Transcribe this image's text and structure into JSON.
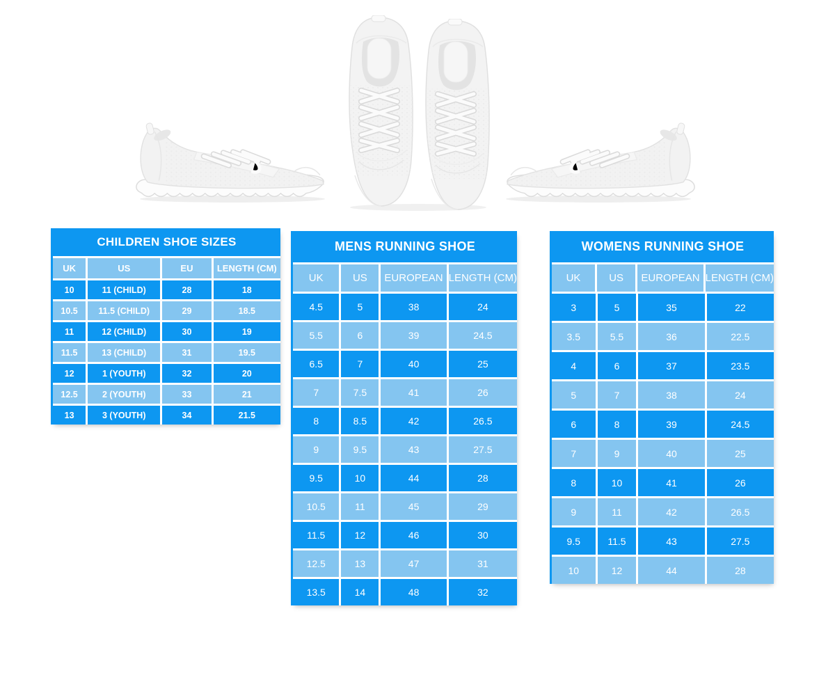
{
  "page": {
    "background": "#ffffff"
  },
  "colors": {
    "table_dark_blue": "#0d97f1",
    "table_light_blue": "#84c5f0",
    "cell_text": "#ffffff"
  },
  "hero_images": {
    "left": "white-sneaker-side-view",
    "center": "white-sneakers-pair-top-view",
    "right": "white-sneaker-side-view-mirrored"
  },
  "chart_data": [
    {
      "type": "table",
      "title": "CHILDREN SHOE SIZES",
      "columns": [
        "UK",
        "US",
        "EU",
        "LENGTH (CM)"
      ],
      "rows": [
        [
          "10",
          "11 (CHILD)",
          "28",
          "18"
        ],
        [
          "10.5",
          "11.5 (CHILD)",
          "29",
          "18.5"
        ],
        [
          "11",
          "12 (CHILD)",
          "30",
          "19"
        ],
        [
          "11.5",
          "13 (CHILD)",
          "31",
          "19.5"
        ],
        [
          "12",
          "1 (YOUTH)",
          "32",
          "20"
        ],
        [
          "12.5",
          "2 (YOUTH)",
          "33",
          "21"
        ],
        [
          "13",
          "3 (YOUTH)",
          "34",
          "21.5"
        ]
      ]
    },
    {
      "type": "table",
      "title": "MENS RUNNING SHOE",
      "columns": [
        "UK",
        "US",
        "EUROPEAN",
        "LENGTH (CM)"
      ],
      "rows": [
        [
          "4.5",
          "5",
          "38",
          "24"
        ],
        [
          "5.5",
          "6",
          "39",
          "24.5"
        ],
        [
          "6.5",
          "7",
          "40",
          "25"
        ],
        [
          "7",
          "7.5",
          "41",
          "26"
        ],
        [
          "8",
          "8.5",
          "42",
          "26.5"
        ],
        [
          "9",
          "9.5",
          "43",
          "27.5"
        ],
        [
          "9.5",
          "10",
          "44",
          "28"
        ],
        [
          "10.5",
          "11",
          "45",
          "29"
        ],
        [
          "11.5",
          "12",
          "46",
          "30"
        ],
        [
          "12.5",
          "13",
          "47",
          "31"
        ],
        [
          "13.5",
          "14",
          "48",
          "32"
        ]
      ]
    },
    {
      "type": "table",
      "title": "WOMENS RUNNING SHOE",
      "columns": [
        "UK",
        "US",
        "EUROPEAN",
        "LENGTH (CM)"
      ],
      "rows": [
        [
          "3",
          "5",
          "35",
          "22"
        ],
        [
          "3.5",
          "5.5",
          "36",
          "22.5"
        ],
        [
          "4",
          "6",
          "37",
          "23.5"
        ],
        [
          "5",
          "7",
          "38",
          "24"
        ],
        [
          "6",
          "8",
          "39",
          "24.5"
        ],
        [
          "7",
          "9",
          "40",
          "25"
        ],
        [
          "8",
          "10",
          "41",
          "26"
        ],
        [
          "9",
          "11",
          "42",
          "26.5"
        ],
        [
          "9.5",
          "11.5",
          "43",
          "27.5"
        ],
        [
          "10",
          "12",
          "44",
          "28"
        ]
      ]
    }
  ]
}
